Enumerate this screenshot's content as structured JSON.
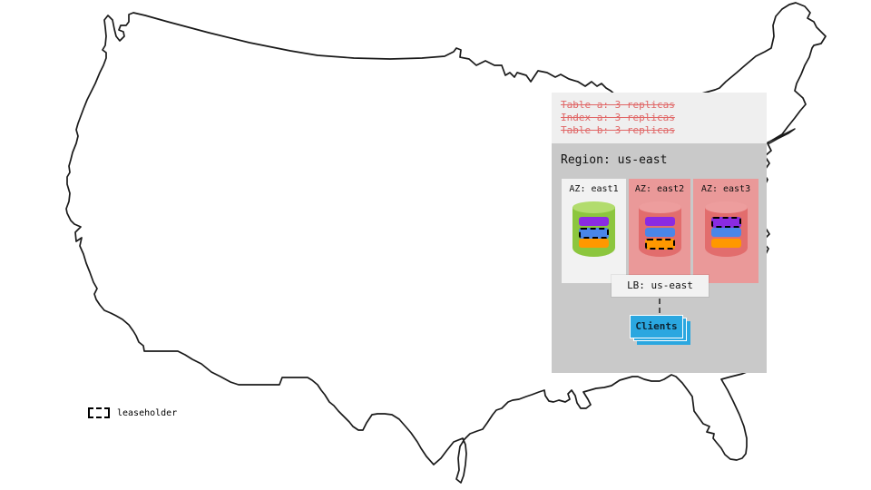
{
  "map": {
    "name": "united-states-outline",
    "stroke_color": "#1a1a1a"
  },
  "overlay": {
    "schedule": {
      "lines": [
        "Table a: 3 replicas",
        "Index a: 3 replicas",
        "Table b: 3 replicas"
      ],
      "text_color": "#e06666",
      "struck_through": true
    },
    "region": {
      "title": "Region: us-east"
    },
    "azs": [
      {
        "label": "AZ: east1",
        "cylinder": "green",
        "replicas": [
          {
            "name": "table-a-replica",
            "color": "purple",
            "leaseholder": false
          },
          {
            "name": "index-a-replica",
            "color": "blue",
            "leaseholder": true
          },
          {
            "name": "table-b-replica",
            "color": "orange",
            "leaseholder": false
          }
        ]
      },
      {
        "label": "AZ: east2",
        "cylinder": "red",
        "replicas": [
          {
            "name": "table-a-replica",
            "color": "purple",
            "leaseholder": false
          },
          {
            "name": "index-a-replica",
            "color": "blue",
            "leaseholder": false
          },
          {
            "name": "table-b-replica",
            "color": "orange",
            "leaseholder": true
          }
        ]
      },
      {
        "label": "AZ: east3",
        "cylinder": "red",
        "replicas": [
          {
            "name": "table-a-replica",
            "color": "purple",
            "leaseholder": true
          },
          {
            "name": "index-a-replica",
            "color": "blue",
            "leaseholder": false
          },
          {
            "name": "table-b-replica",
            "color": "orange",
            "leaseholder": false
          }
        ]
      }
    ],
    "lb": {
      "label": "LB: us-east"
    },
    "clients": {
      "label": "Clients",
      "stack_count": 3
    }
  },
  "legend": {
    "label": "leaseholder"
  },
  "colors": {
    "schedule_bg": "#efefef",
    "region_bg": "#c9c9c9",
    "az_highlight_bg": "#f2f2f2",
    "az_bg": "#ea9999",
    "cylinder_green": "#8cc63e",
    "cylinder_red": "#e26d6d",
    "replica_purple": "#8a2be2",
    "replica_blue": "#4a86e8",
    "replica_orange": "#ff9800",
    "clients_blue": "#2aa7e0"
  }
}
